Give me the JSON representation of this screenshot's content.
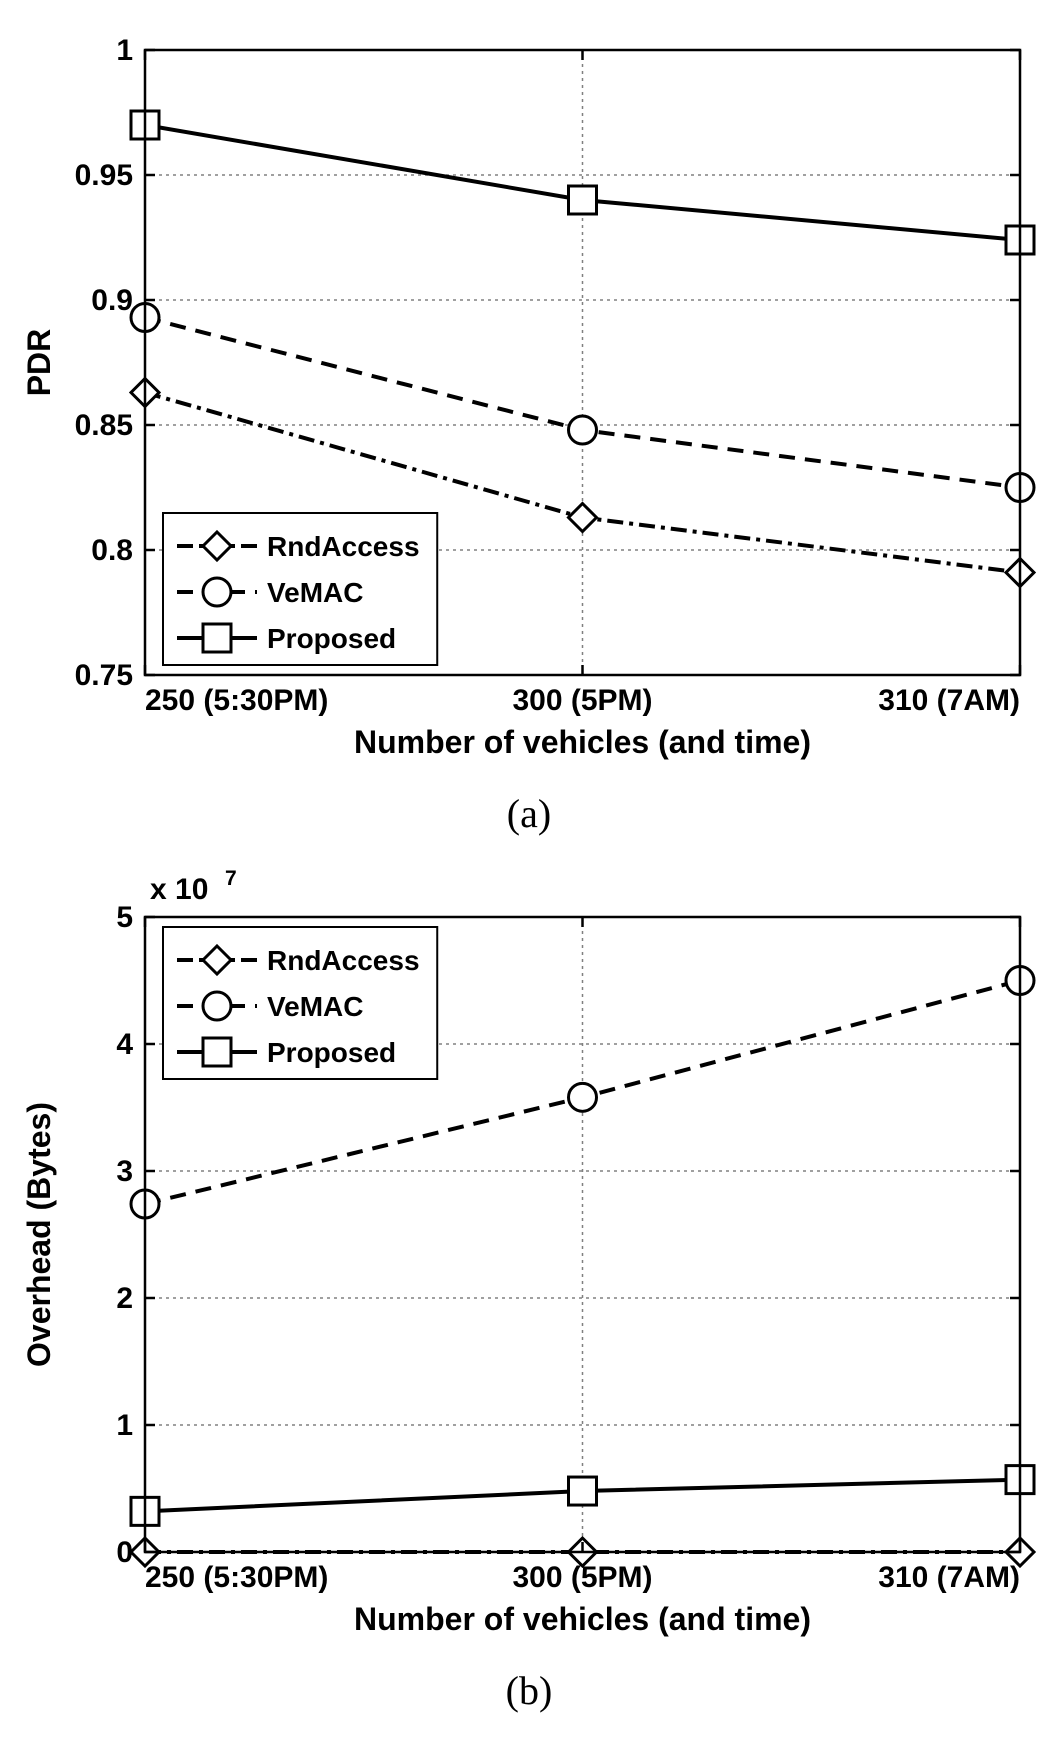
{
  "chart_a": {
    "type": "line",
    "subplot_label": "(a)",
    "xlabel": "Number of vehicles (and time)",
    "ylabel": "PDR",
    "xlim": [
      0,
      2
    ],
    "ylim": [
      0.75,
      1.0
    ],
    "ytick_values": [
      0.75,
      0.8,
      0.85,
      0.9,
      0.95,
      1.0
    ],
    "ytick_labels": [
      "0.75",
      "0.8",
      "0.85",
      "0.9",
      "0.95",
      "1"
    ],
    "xtick_values": [
      0,
      1,
      2
    ],
    "xtick_labels": [
      "250 (5:30PM)",
      "300 (5PM)",
      "310 (7AM)"
    ],
    "label_fontsize": 32,
    "tick_fontsize": 30,
    "background_color": "#ffffff",
    "grid_color": "#808080",
    "axis_color": "#000000",
    "line_width": 4,
    "marker_size": 14,
    "grid_dash": "3,4",
    "legend_position": "bottom-left",
    "legend_fontsize": 28,
    "series": [
      {
        "name": "RndAccess",
        "label": "RndAccess",
        "color": "#000000",
        "dash": "16,6,4,6",
        "marker": "diamond",
        "marker_fill": "#ffffff",
        "x": [
          0,
          1,
          2
        ],
        "y": [
          0.863,
          0.813,
          0.791
        ]
      },
      {
        "name": "VeMAC",
        "label": "VeMAC",
        "color": "#000000",
        "dash": "16,10",
        "marker": "circle",
        "marker_fill": "#ffffff",
        "x": [
          0,
          1,
          2
        ],
        "y": [
          0.893,
          0.848,
          0.825
        ]
      },
      {
        "name": "Proposed",
        "label": "Proposed",
        "color": "#000000",
        "dash": "none",
        "marker": "square",
        "marker_fill": "#ffffff",
        "x": [
          0,
          1,
          2
        ],
        "y": [
          0.97,
          0.94,
          0.924
        ]
      }
    ]
  },
  "chart_b": {
    "type": "line",
    "subplot_label": "(b)",
    "xlabel": "Number of vehicles (and time)",
    "ylabel": "Overhead (Bytes)",
    "exponent_label": "x 10",
    "exponent_value": "7",
    "xlim": [
      0,
      2
    ],
    "ylim": [
      0,
      5
    ],
    "ytick_values": [
      0,
      1,
      2,
      3,
      4,
      5
    ],
    "ytick_labels": [
      "0",
      "1",
      "2",
      "3",
      "4",
      "5"
    ],
    "xtick_values": [
      0,
      1,
      2
    ],
    "xtick_labels": [
      "250 (5:30PM)",
      "300 (5PM)",
      "310 (7AM)"
    ],
    "label_fontsize": 32,
    "tick_fontsize": 30,
    "background_color": "#ffffff",
    "grid_color": "#808080",
    "axis_color": "#000000",
    "line_width": 4,
    "marker_size": 14,
    "grid_dash": "3,4",
    "legend_position": "top-left",
    "legend_fontsize": 28,
    "series": [
      {
        "name": "RndAccess",
        "label": "RndAccess",
        "color": "#000000",
        "dash": "16,6,4,6",
        "marker": "diamond",
        "marker_fill": "#ffffff",
        "x": [
          0,
          1,
          2
        ],
        "y": [
          0.0,
          0.0,
          0.0
        ]
      },
      {
        "name": "VeMAC",
        "label": "VeMAC",
        "color": "#000000",
        "dash": "16,10",
        "marker": "circle",
        "marker_fill": "#ffffff",
        "x": [
          0,
          1,
          2
        ],
        "y": [
          2.74,
          3.58,
          4.5
        ]
      },
      {
        "name": "Proposed",
        "label": "Proposed",
        "color": "#000000",
        "dash": "none",
        "marker": "square",
        "marker_fill": "#ffffff",
        "x": [
          0,
          1,
          2
        ],
        "y": [
          0.32,
          0.48,
          0.57
        ]
      }
    ]
  }
}
